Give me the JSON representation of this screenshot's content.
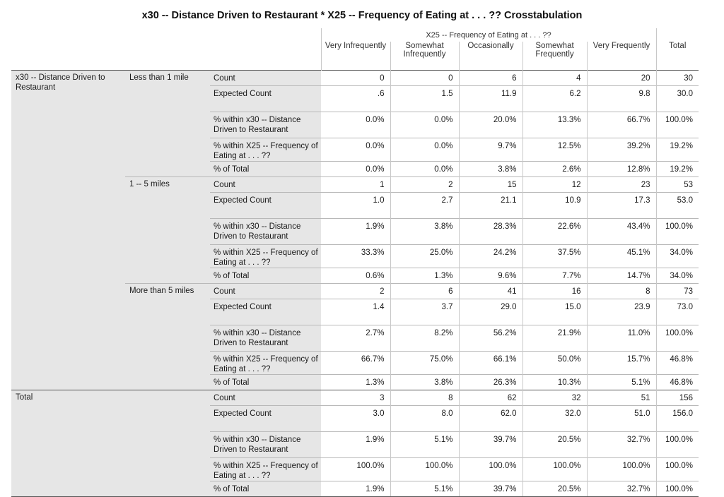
{
  "title": "x30 -- Distance Driven to Restaurant * X25 -- Frequency of Eating at  . . .  ?? Crosstabulation",
  "column_group_label": "X25 -- Frequency of Eating at  . . .  ??",
  "columns": [
    "Very Infrequently",
    "Somewhat Infrequently",
    "Occasionally",
    "Somewhat Frequently",
    "Very Frequently",
    "Total"
  ],
  "row_variable_label": "x30 -- Distance Driven to Restaurant",
  "stat_labels": [
    "Count",
    "Expected Count",
    "% within x30 -- Distance Driven to Restaurant",
    "% within X25 -- Frequency of Eating at  . . .  ??",
    "% of Total"
  ],
  "groups": [
    {
      "label": "Less than 1 mile",
      "rows": [
        [
          "0",
          "0",
          "6",
          "4",
          "20",
          "30"
        ],
        [
          ".6",
          "1.5",
          "11.9",
          "6.2",
          "9.8",
          "30.0"
        ],
        [
          "0.0%",
          "0.0%",
          "20.0%",
          "13.3%",
          "66.7%",
          "100.0%"
        ],
        [
          "0.0%",
          "0.0%",
          "9.7%",
          "12.5%",
          "39.2%",
          "19.2%"
        ],
        [
          "0.0%",
          "0.0%",
          "3.8%",
          "2.6%",
          "12.8%",
          "19.2%"
        ]
      ]
    },
    {
      "label": "1 -- 5 miles",
      "rows": [
        [
          "1",
          "2",
          "15",
          "12",
          "23",
          "53"
        ],
        [
          "1.0",
          "2.7",
          "21.1",
          "10.9",
          "17.3",
          "53.0"
        ],
        [
          "1.9%",
          "3.8%",
          "28.3%",
          "22.6%",
          "43.4%",
          "100.0%"
        ],
        [
          "33.3%",
          "25.0%",
          "24.2%",
          "37.5%",
          "45.1%",
          "34.0%"
        ],
        [
          "0.6%",
          "1.3%",
          "9.6%",
          "7.7%",
          "14.7%",
          "34.0%"
        ]
      ]
    },
    {
      "label": "More than 5 miles",
      "rows": [
        [
          "2",
          "6",
          "41",
          "16",
          "8",
          "73"
        ],
        [
          "1.4",
          "3.7",
          "29.0",
          "15.0",
          "23.9",
          "73.0"
        ],
        [
          "2.7%",
          "8.2%",
          "56.2%",
          "21.9%",
          "11.0%",
          "100.0%"
        ],
        [
          "66.7%",
          "75.0%",
          "66.1%",
          "50.0%",
          "15.7%",
          "46.8%"
        ],
        [
          "1.3%",
          "3.8%",
          "26.3%",
          "10.3%",
          "5.1%",
          "46.8%"
        ]
      ]
    }
  ],
  "total": {
    "label": "Total",
    "rows": [
      [
        "3",
        "8",
        "62",
        "32",
        "51",
        "156"
      ],
      [
        "3.0",
        "8.0",
        "62.0",
        "32.0",
        "51.0",
        "156.0"
      ],
      [
        "1.9%",
        "5.1%",
        "39.7%",
        "20.5%",
        "32.7%",
        "100.0%"
      ],
      [
        "100.0%",
        "100.0%",
        "100.0%",
        "100.0%",
        "100.0%",
        "100.0%"
      ],
      [
        "1.9%",
        "5.1%",
        "39.7%",
        "20.5%",
        "32.7%",
        "100.0%"
      ]
    ]
  }
}
